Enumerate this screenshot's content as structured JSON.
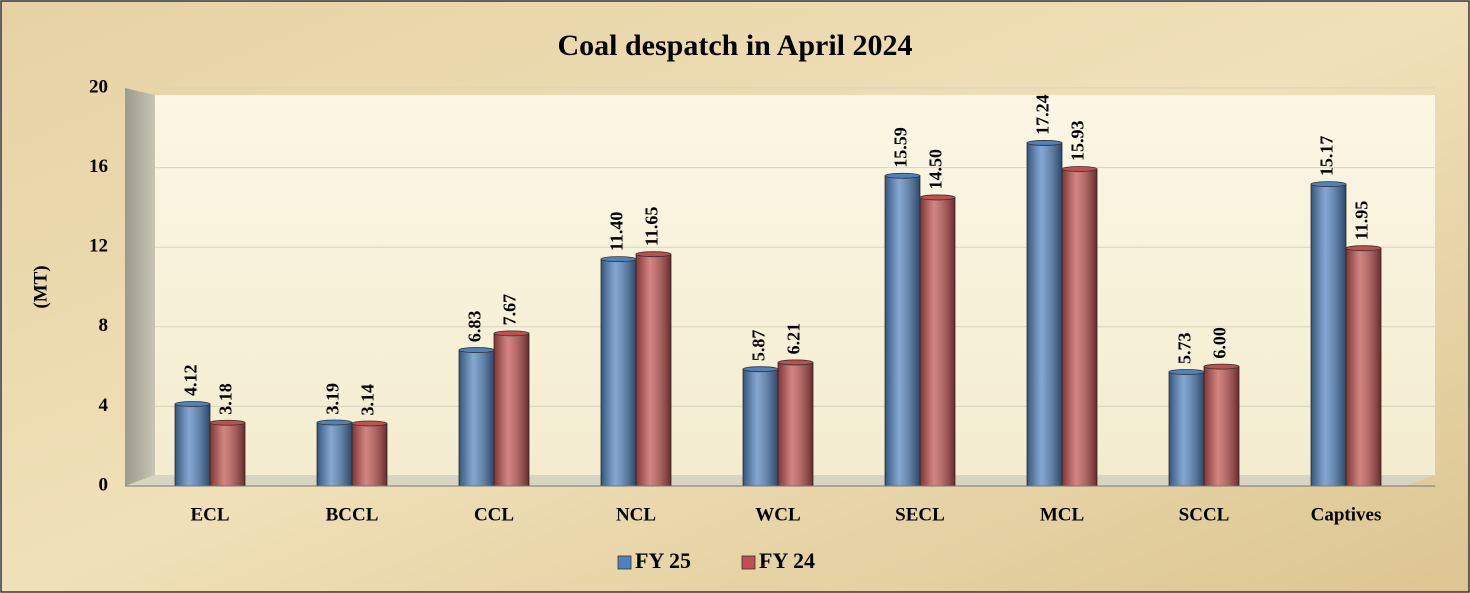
{
  "chart_data": {
    "type": "bar",
    "title": "Coal despatch in April 2024",
    "y_label": "(MT)",
    "categories": [
      "ECL",
      "BCCL",
      "CCL",
      "NCL",
      "WCL",
      "SECL",
      "MCL",
      "SCCL",
      "Captives"
    ],
    "series": [
      {
        "name": "FY 25",
        "color": "#4f81bd",
        "values": [
          4.12,
          3.19,
          6.83,
          11.4,
          5.87,
          15.59,
          17.24,
          5.73,
          15.17
        ],
        "value_labels": [
          "4.12",
          "3.19",
          "6.83",
          "11.40",
          "5.87",
          "15.59",
          "17.24",
          "5.73",
          "15.17"
        ]
      },
      {
        "name": "FY 24",
        "color": "#c0504d",
        "values": [
          3.18,
          3.14,
          7.67,
          11.65,
          6.21,
          14.5,
          15.93,
          6.0,
          11.95
        ],
        "value_labels": [
          "3.18",
          "3.14",
          "7.67",
          "11.65",
          "6.21",
          "14.50",
          "15.93",
          "6.00",
          "11.95"
        ]
      }
    ],
    "ylim": [
      0,
      20
    ],
    "yticks": [
      0,
      4,
      8,
      12,
      16,
      20
    ],
    "grid": true,
    "legend": "bottom"
  }
}
